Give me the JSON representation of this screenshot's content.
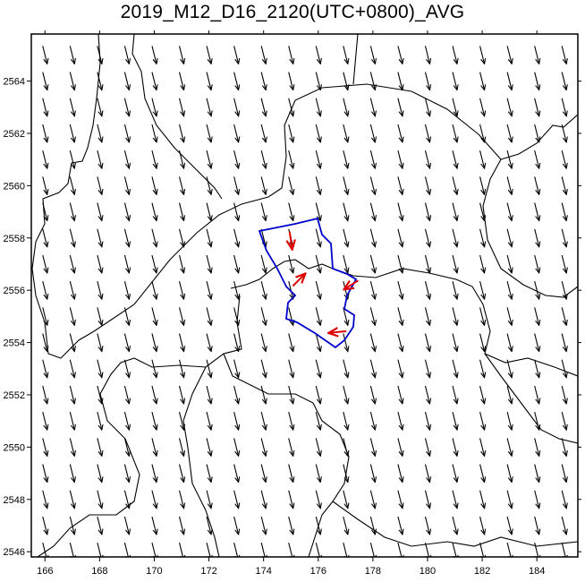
{
  "title": "2019_M12_D16_2120(UTC+0800)_AVG",
  "map": {
    "x_ticks": [
      "166",
      "168",
      "170",
      "172",
      "174",
      "176",
      "178",
      "180",
      "182",
      "184"
    ],
    "y_ticks": [
      "2546",
      "2548",
      "2550",
      "2552",
      "2554",
      "2556",
      "2558",
      "2560",
      "2562",
      "2564"
    ],
    "x_range": [
      165.5,
      185.5
    ],
    "y_range": [
      2545.8,
      2565.8
    ],
    "colors": {
      "boundary": "#000000",
      "wind_arrow": "#000000",
      "highlight_region": "#0000cc",
      "highlight_arrow": "#dd0000"
    },
    "wind_field": {
      "direction": "north-to-south",
      "x_spacing_km": 1.0,
      "y_spacing_km": 1.0
    },
    "highlight_arrows": [
      {
        "x": 175.0,
        "y": 2557.9,
        "direction": "south"
      },
      {
        "x": 175.3,
        "y": 2556.4,
        "direction": "north-east"
      },
      {
        "x": 177.2,
        "y": 2556.2,
        "direction": "south-west"
      },
      {
        "x": 176.7,
        "y": 2554.4,
        "direction": "west"
      }
    ]
  }
}
